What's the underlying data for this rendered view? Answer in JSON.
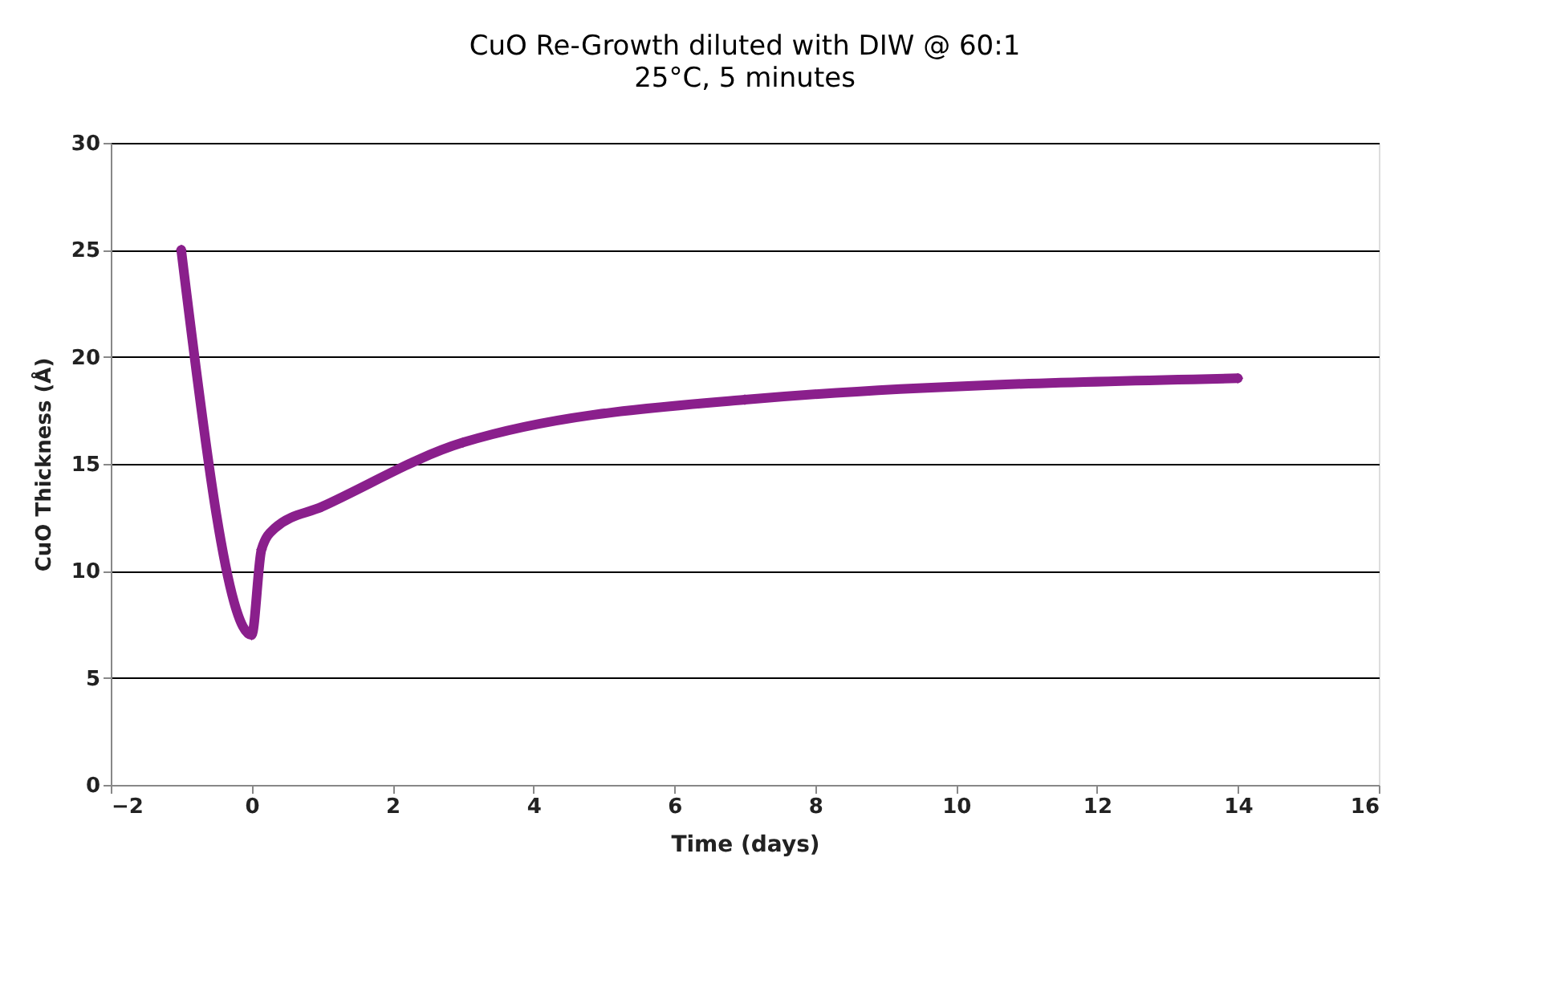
{
  "chart_data": {
    "type": "line",
    "title": "CuO Re-Growth diluted with DIW @ 60:1",
    "subtitle": "25°C, 5 minutes",
    "xlabel": "Time (days)",
    "ylabel": "CuO Thickness (Å)",
    "x": [
      -1,
      0,
      0.14,
      0.33,
      1,
      3,
      7,
      14
    ],
    "series": [
      {
        "color": "#8a1f8c",
        "values": [
          25,
          7,
          11,
          12,
          13,
          16,
          18,
          19
        ]
      }
    ],
    "xlim": [
      -2,
      16
    ],
    "xticks": [
      -2,
      0,
      2,
      4,
      6,
      8,
      10,
      12,
      14,
      16
    ],
    "ylim": [
      0,
      30
    ],
    "yticks": [
      0,
      5,
      10,
      15,
      20,
      25,
      30
    ],
    "grid": "y",
    "legend": false,
    "marker": "diamond",
    "line_style": "solid"
  }
}
